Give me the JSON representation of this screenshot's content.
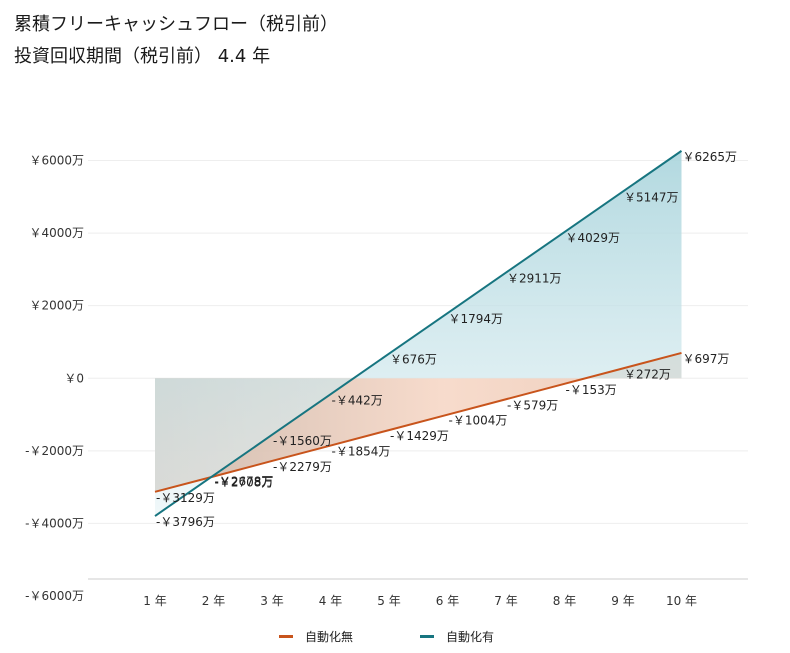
{
  "title": "累積フリーキャッシュフロー（税引前）",
  "subtitle": "投資回収期間（税引前） 4.4 年",
  "colors": {
    "without": "#c8541c",
    "with": "#177580",
    "grid": "#eeeeee",
    "axis": "#cccccc"
  },
  "chart_data": {
    "type": "line",
    "categories": [
      "1 年",
      "2 年",
      "3 年",
      "4 年",
      "5 年",
      "6 年",
      "7 年",
      "8 年",
      "9 年",
      "10 年"
    ],
    "y_ticks": [
      6000,
      4000,
      2000,
      0,
      -2000,
      -4000,
      -6000
    ],
    "y_tick_labels": [
      "￥6000万",
      "￥4000万",
      "￥2000万",
      "￥0",
      "-￥2000万",
      "-￥4000万",
      "-￥6000万"
    ],
    "ylim": [
      -6000,
      6000
    ],
    "series": [
      {
        "name": "自動化無",
        "color": "#c8541c",
        "values": [
          -3129,
          -2708,
          -2279,
          -1854,
          -1429,
          -1004,
          -579,
          -153,
          272,
          697
        ],
        "labels": [
          "-￥3129万",
          "-￥2708万",
          "-￥2279万",
          "-￥1854万",
          "-￥1429万",
          "-￥1004万",
          "-￥579万",
          "-￥153万",
          "￥272万",
          "￥697万"
        ]
      },
      {
        "name": "自動化有",
        "color": "#177580",
        "values": [
          -3796,
          -2678,
          -1560,
          -442,
          676,
          1794,
          2911,
          4029,
          5147,
          6265
        ],
        "labels": [
          "-￥3796万",
          "-￥2678万",
          "-￥1560万",
          "-￥442万",
          "￥676万",
          "￥1794万",
          "￥2911万",
          "￥4029万",
          "￥5147万",
          "￥6265万"
        ]
      }
    ],
    "legend_position": "bottom",
    "grid": true
  }
}
